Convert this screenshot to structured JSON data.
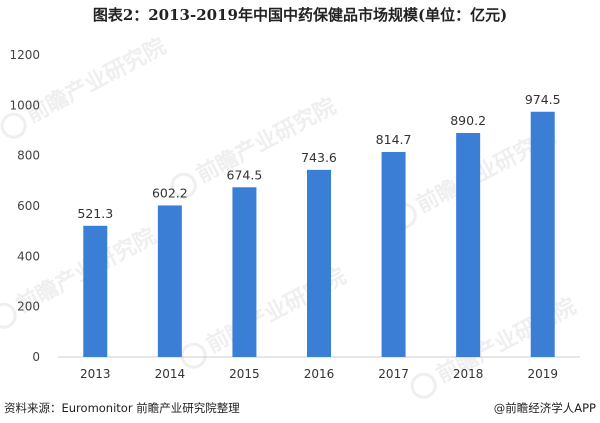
{
  "chart_data": {
    "type": "bar",
    "title": "图表2：2013-2019年中国中药保健品市场规模(单位：亿元)",
    "categories": [
      "2013",
      "2014",
      "2015",
      "2016",
      "2017",
      "2018",
      "2019"
    ],
    "values": [
      521.3,
      602.2,
      674.5,
      743.6,
      814.7,
      890.2,
      974.5
    ],
    "data_labels": [
      "521.3",
      "602.2",
      "674.5",
      "743.6",
      "814.7",
      "890.2",
      "974.5"
    ],
    "yticks": [
      "0",
      "200",
      "400",
      "600",
      "800",
      "1000",
      "1200"
    ],
    "ylim": [
      0,
      1200
    ],
    "xlabel": "",
    "ylabel": "",
    "grid": false,
    "bar_color": "#3a7fd5"
  },
  "footer": {
    "source": "资料来源：Euromonitor 前瞻产业研究院整理",
    "brand": "@前瞻经济学人APP"
  },
  "watermark": {
    "text": "前瞻产业研究院"
  }
}
